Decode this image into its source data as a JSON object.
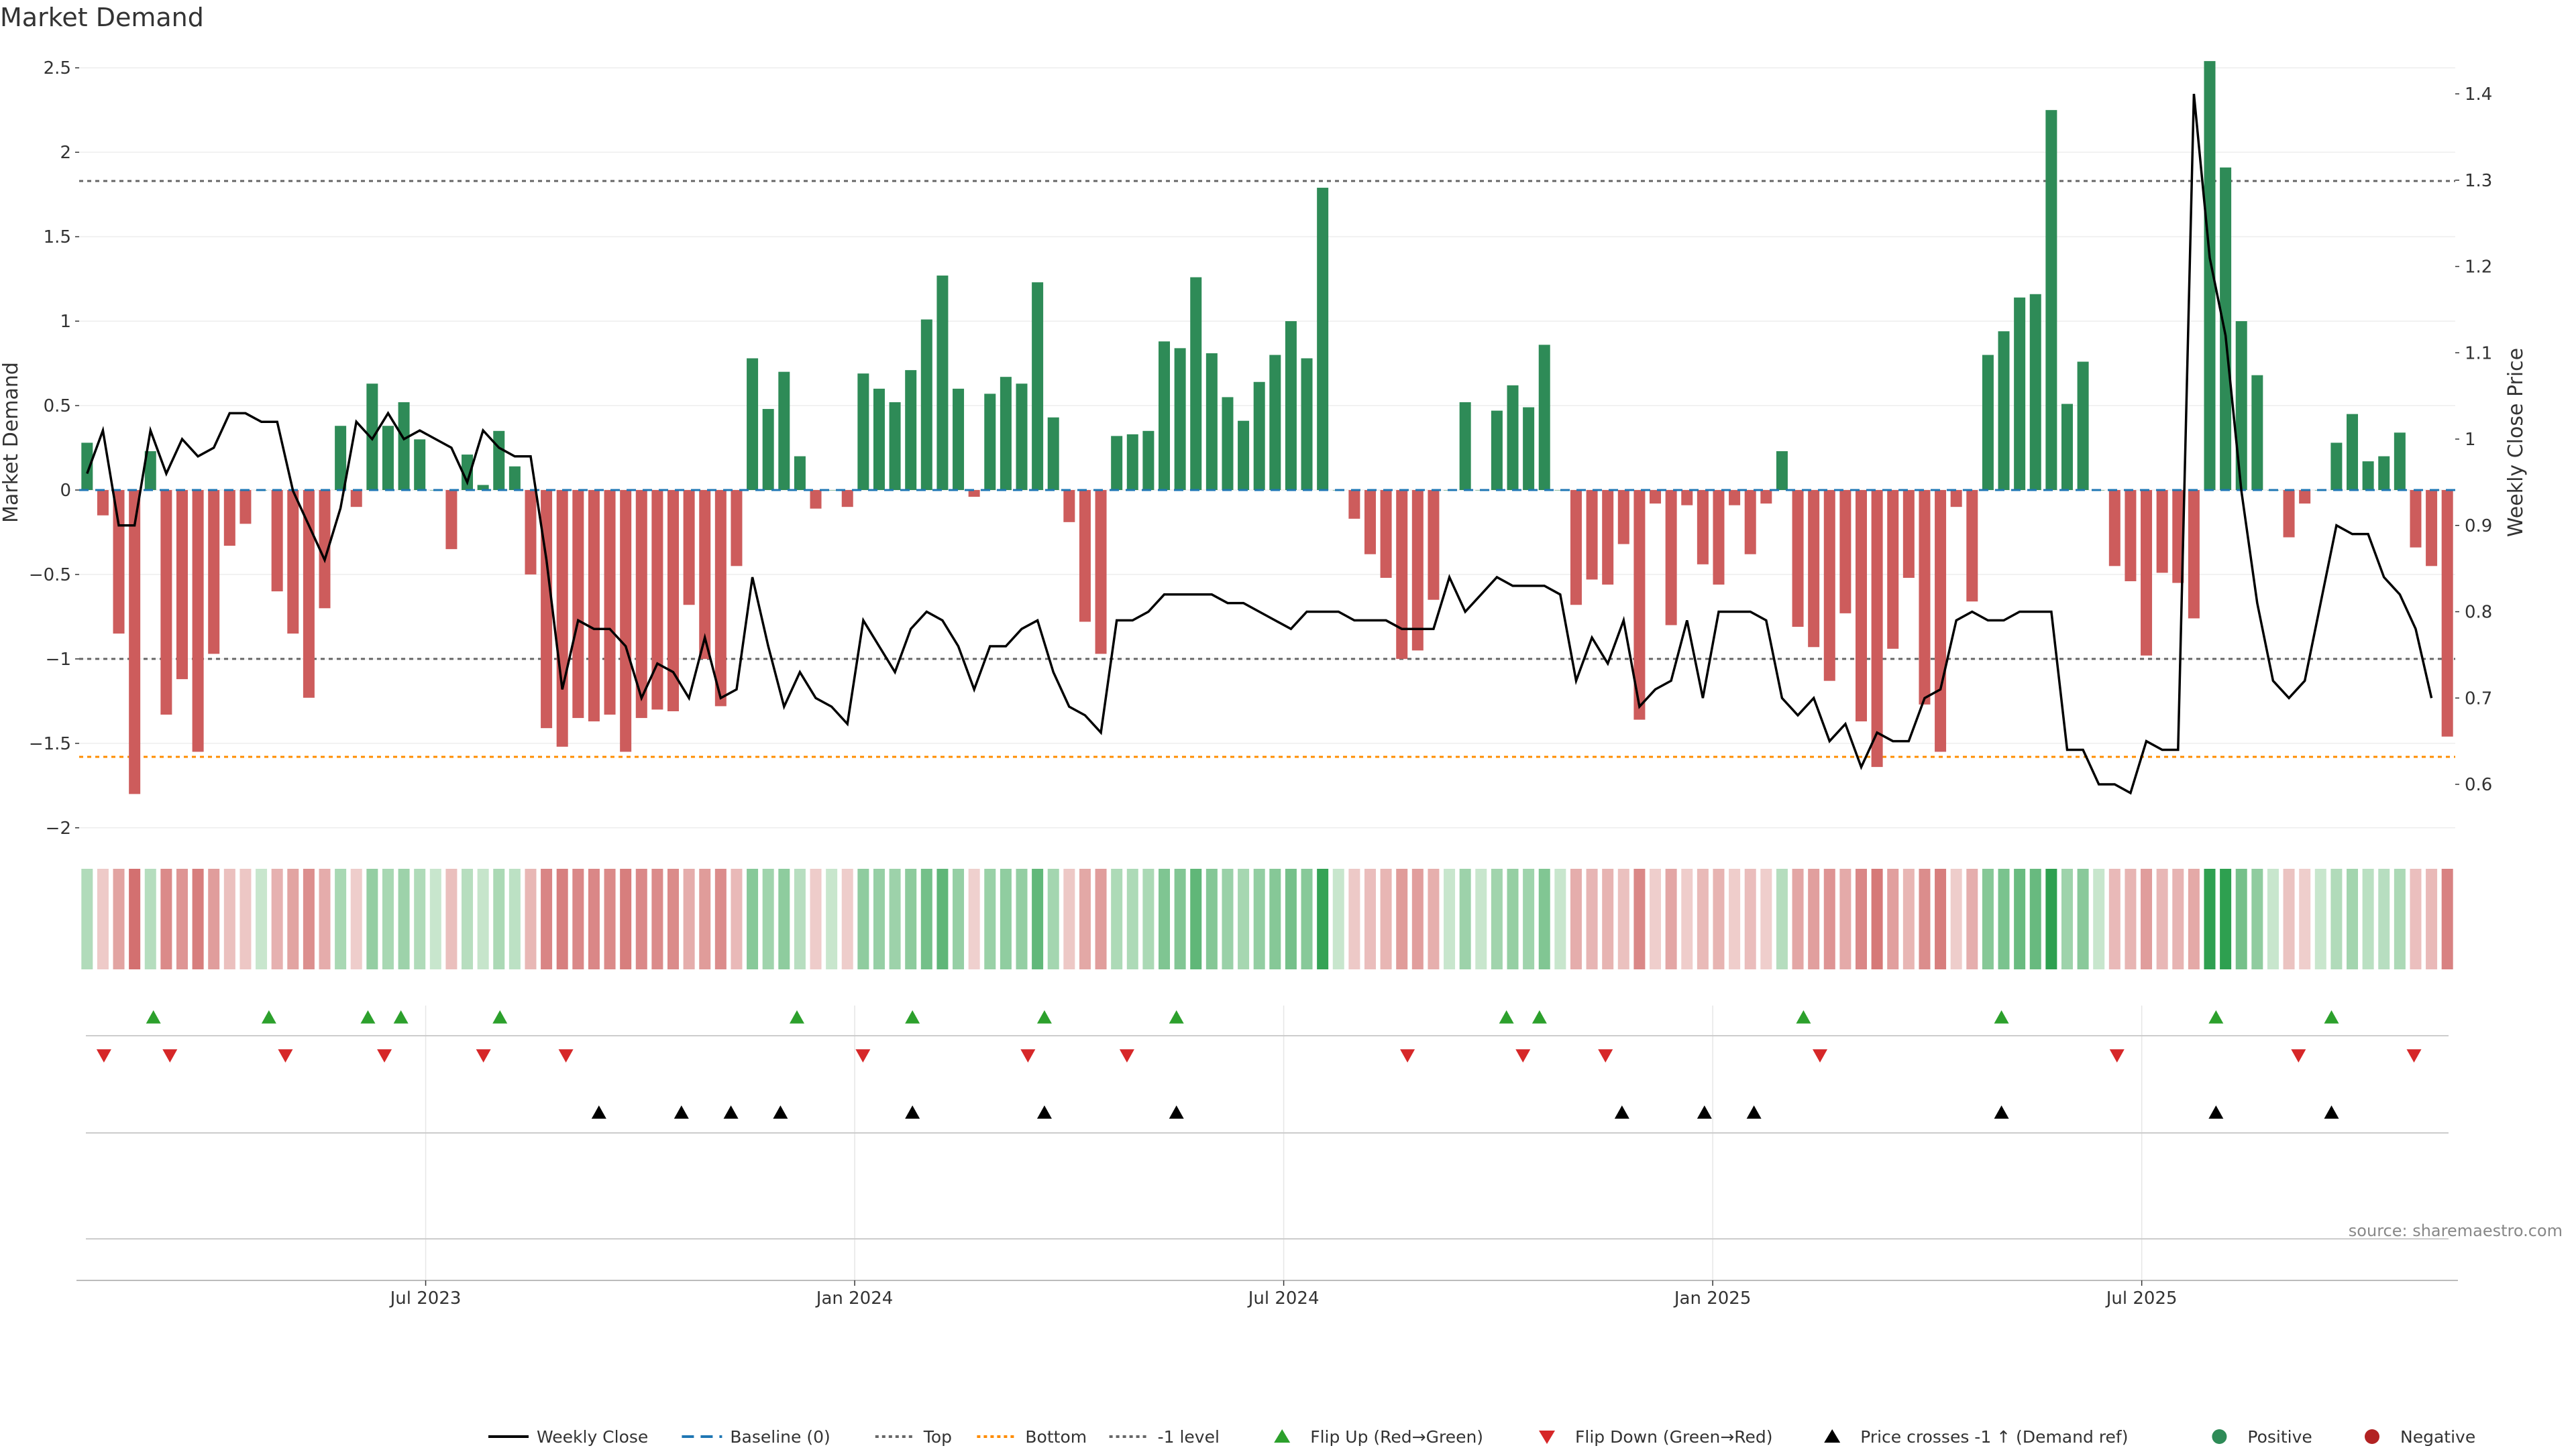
{
  "title": "Market Demand",
  "source": "source: sharemaestro.com",
  "colors": {
    "positive": "#2e8b57",
    "negative": "#cd5c5c",
    "line": "#000000",
    "flip_up": "#2ca02c",
    "flip_down": "#d62728",
    "cross": "#000000",
    "bottom": "#ff8c00",
    "dotted": "#666666"
  },
  "chart_data": {
    "type": "bar",
    "title": "Market Demand",
    "ylabel": "Market Demand",
    "y2label": "Weekly Close Price",
    "ylim": [
      -2.1,
      2.6
    ],
    "y2lim": [
      0.6,
      1.4
    ],
    "yticks": [
      "2.5",
      "2",
      "1.5",
      "1",
      "0.5",
      "0",
      "−0.5",
      "−1",
      "−1.5",
      "−2"
    ],
    "yticks_values": [
      2.5,
      2,
      1.5,
      1,
      0.5,
      0,
      -0.5,
      -1,
      -1.5,
      -2
    ],
    "y2ticks": [
      "1.4",
      "1.3",
      "1.2",
      "1.1",
      "1",
      "0.9",
      "0.8",
      "0.7",
      "0.6"
    ],
    "y2ticks_values": [
      1.4,
      1.3,
      1.2,
      1.1,
      1.0,
      0.9,
      0.8,
      0.7,
      0.6
    ],
    "x_start_week": 0,
    "x_end_week": 144,
    "xticks": [
      {
        "label": "Jul 2023",
        "week": 21
      },
      {
        "label": "Jan 2024",
        "week": 47
      },
      {
        "label": "Jul 2024",
        "week": 73
      },
      {
        "label": "Jan 2025",
        "week": 99
      },
      {
        "label": "Jul 2025",
        "week": 125
      }
    ],
    "reference_lines": [
      {
        "name": "Top",
        "value": 1.83,
        "color": "#666666",
        "dash": "6,6"
      },
      {
        "name": "-1 level",
        "value": -1.0,
        "color": "#666666",
        "dash": "6,6"
      },
      {
        "name": "Bottom",
        "value": -1.58,
        "color": "#ff8c00",
        "dash": "6,6"
      }
    ],
    "series": [
      {
        "name": "Market Demand",
        "values": [
          0.28,
          -0.15,
          -0.85,
          -1.8,
          0.23,
          -1.33,
          -1.12,
          -1.55,
          -0.97,
          -0.33,
          -0.2,
          0.0,
          -0.6,
          -0.85,
          -1.23,
          -0.7,
          0.38,
          -0.1,
          0.63,
          0.38,
          0.52,
          0.3,
          0.0,
          -0.35,
          0.21,
          0.03,
          0.35,
          0.14,
          -0.5,
          -1.41,
          -1.52,
          -1.35,
          -1.37,
          -1.33,
          -1.55,
          -1.35,
          -1.3,
          -1.31,
          -0.68,
          -1.0,
          -1.28,
          -0.45,
          0.78,
          0.48,
          0.7,
          0.2,
          -0.11,
          0.0,
          -0.1,
          0.69,
          0.6,
          0.52,
          0.71,
          1.01,
          1.27,
          0.6,
          -0.04,
          0.57,
          0.67,
          0.63,
          1.23,
          0.43,
          -0.19,
          -0.78,
          -0.97,
          0.32,
          0.33,
          0.35,
          0.88,
          0.84,
          1.26,
          0.81,
          0.55,
          0.41,
          0.64,
          0.8,
          1.0,
          0.78,
          1.79,
          0.0,
          -0.17,
          -0.38,
          -0.52,
          -1.0,
          -0.95,
          -0.65,
          0.0,
          0.52,
          0.0,
          0.47,
          0.62,
          0.49,
          0.86,
          0.0,
          -0.68,
          -0.53,
          -0.56,
          -0.32,
          -1.36,
          -0.08,
          -0.8,
          -0.09,
          -0.44,
          -0.56,
          -0.09,
          -0.38,
          -0.08,
          0.23,
          -0.81,
          -0.93,
          -1.13,
          -0.73,
          -1.37,
          -1.64,
          -0.94,
          -0.52,
          -1.27,
          -1.55,
          -0.1,
          -0.66,
          0.8,
          0.94,
          1.14,
          1.16,
          2.25,
          0.51,
          0.76,
          0.0,
          -0.45,
          -0.54,
          -0.98,
          -0.49,
          -0.55,
          -0.76,
          2.54,
          1.91,
          1.0,
          0.68,
          0.0,
          -0.28,
          -0.08,
          0.0,
          0.28,
          0.45,
          0.17,
          0.2,
          0.34,
          -0.34,
          -0.45,
          -1.46
        ]
      },
      {
        "name": "Weekly Close",
        "axis": "right",
        "values": [
          0.96,
          1.01,
          0.9,
          0.9,
          1.01,
          0.96,
          1.0,
          0.98,
          0.99,
          1.03,
          1.03,
          1.02,
          1.02,
          0.94,
          0.9,
          0.86,
          0.92,
          1.02,
          1.0,
          1.03,
          1.0,
          1.01,
          1.0,
          0.99,
          0.95,
          1.01,
          0.99,
          0.98,
          0.98,
          0.86,
          0.71,
          0.79,
          0.78,
          0.78,
          0.76,
          0.7,
          0.74,
          0.73,
          0.7,
          0.77,
          0.7,
          0.71,
          0.84,
          0.76,
          0.69,
          0.73,
          0.7,
          0.69,
          0.67,
          0.79,
          0.76,
          0.73,
          0.78,
          0.8,
          0.79,
          0.76,
          0.71,
          0.76,
          0.76,
          0.78,
          0.79,
          0.73,
          0.69,
          0.68,
          0.66,
          0.79,
          0.79,
          0.8,
          0.82,
          0.82,
          0.82,
          0.82,
          0.81,
          0.81,
          0.8,
          0.79,
          0.78,
          0.8,
          0.8,
          0.8,
          0.79,
          0.79,
          0.79,
          0.78,
          0.78,
          0.78,
          0.84,
          0.8,
          0.82,
          0.84,
          0.83,
          0.83,
          0.83,
          0.82,
          0.72,
          0.77,
          0.74,
          0.79,
          0.69,
          0.71,
          0.72,
          0.79,
          0.7,
          0.8,
          0.8,
          0.8,
          0.79,
          0.7,
          0.68,
          0.7,
          0.65,
          0.67,
          0.62,
          0.66,
          0.65,
          0.65,
          0.7,
          0.71,
          0.79,
          0.8,
          0.79,
          0.79,
          0.8,
          0.8,
          0.8,
          0.64,
          0.64,
          0.6,
          0.6,
          0.59,
          0.65,
          0.64,
          0.64,
          1.4,
          1.21,
          1.12,
          0.94,
          0.81,
          0.72,
          0.7,
          0.72,
          0.81,
          0.9,
          0.89,
          0.89,
          0.84,
          0.82,
          0.78,
          0.7
        ]
      }
    ],
    "flip_up_weeks": [
      4,
      11,
      17,
      19,
      25,
      43,
      50,
      58,
      66,
      86,
      88,
      104,
      116,
      129,
      136
    ],
    "flip_down_weeks": [
      1,
      5,
      12,
      18,
      24,
      29,
      47,
      57,
      63,
      80,
      87,
      92,
      105,
      123,
      134,
      141
    ],
    "cross_weeks": [
      31,
      36,
      39,
      42,
      50,
      58,
      66,
      93,
      98,
      101,
      116,
      129,
      136
    ],
    "legend": [
      {
        "label": "Weekly Close",
        "kind": "line",
        "color": "#000000"
      },
      {
        "label": "Baseline (0)",
        "kind": "dash",
        "color": "#1f77b4"
      },
      {
        "label": "Top",
        "kind": "dot",
        "color": "#666666"
      },
      {
        "label": "Bottom",
        "kind": "dot",
        "color": "#ff8c00"
      },
      {
        "label": "-1 level",
        "kind": "dot",
        "color": "#666666"
      },
      {
        "label": "Flip Up (Red→Green)",
        "kind": "tri-up",
        "color": "#2ca02c"
      },
      {
        "label": "Flip Down (Green→Red)",
        "kind": "tri-down",
        "color": "#d62728"
      },
      {
        "label": "Price crosses -1 ↑ (Demand ref)",
        "kind": "tri-up",
        "color": "#000000"
      },
      {
        "label": "Positive",
        "kind": "circle",
        "color": "#2e8b57"
      },
      {
        "label": "Negative",
        "kind": "circle",
        "color": "#b22222"
      }
    ]
  }
}
